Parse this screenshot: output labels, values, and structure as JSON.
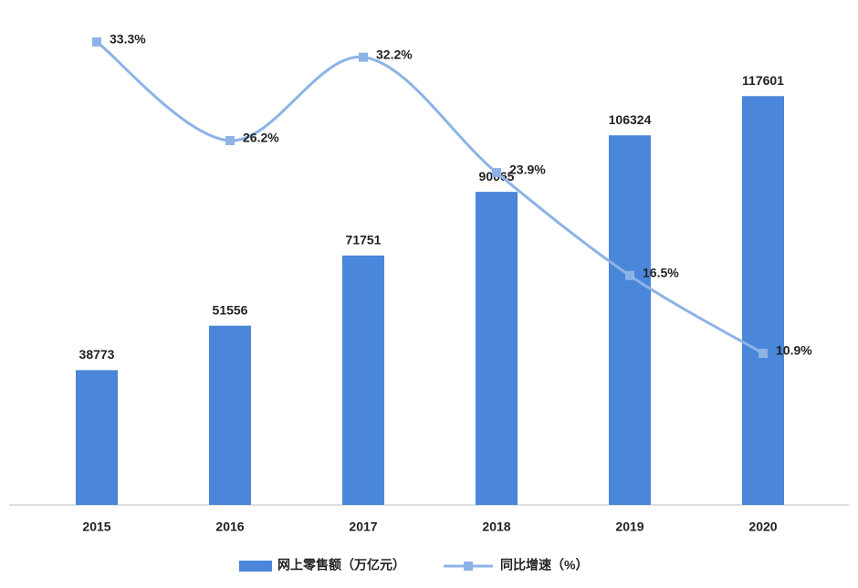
{
  "chart_data": {
    "type": "bar_line",
    "categories": [
      "2015",
      "2016",
      "2017",
      "2018",
      "2019",
      "2020"
    ],
    "series": [
      {
        "name": "网上零售额（万亿元）",
        "type": "bar",
        "color": "#4a86da",
        "values": [
          38773,
          51556,
          71751,
          90065,
          106324,
          117601
        ]
      },
      {
        "name": "同比增速（%）",
        "type": "line",
        "axis": "y2",
        "color": "#8db3e6",
        "values": [
          33.3,
          26.2,
          32.2,
          23.9,
          16.5,
          10.9
        ],
        "value_labels": [
          "33.3%",
          "26.2%",
          "32.2%",
          "23.9%",
          "16.5%",
          "10.9%"
        ]
      }
    ],
    "ylim": [
      0,
      140000
    ],
    "y2lim": [
      0,
      35
    ],
    "legend": "bottom"
  }
}
